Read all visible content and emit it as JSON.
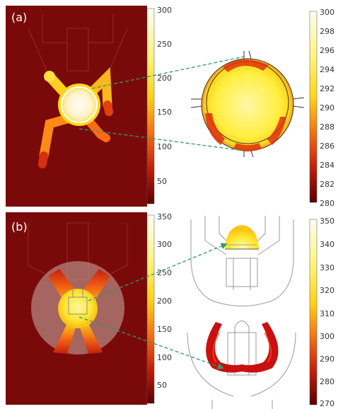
{
  "panels": [
    {
      "label": "(a)",
      "left_colorbar_ticks": [
        "300",
        "250",
        "200",
        "150",
        "100",
        "50"
      ],
      "right_colorbar_ticks": [
        "300",
        "298",
        "296",
        "294",
        "292",
        "290",
        "288",
        "286",
        "284",
        "282",
        "280"
      ]
    },
    {
      "label": "(b)",
      "left_colorbar_ticks": [
        "350",
        "300",
        "250",
        "200",
        "150",
        "100",
        "50"
      ],
      "right_colorbar_ticks": [
        "350",
        "340",
        "330",
        "320",
        "310",
        "300",
        "290",
        "280",
        "270"
      ]
    }
  ],
  "colors": {
    "background_red": "#7a0a0a",
    "hot_white": "#fffbe6",
    "hot_yellow": "#ffe81a",
    "mid_orange": "#e8501a",
    "dark_red": "#6a0000",
    "leader_line": "#2e9a6a"
  }
}
